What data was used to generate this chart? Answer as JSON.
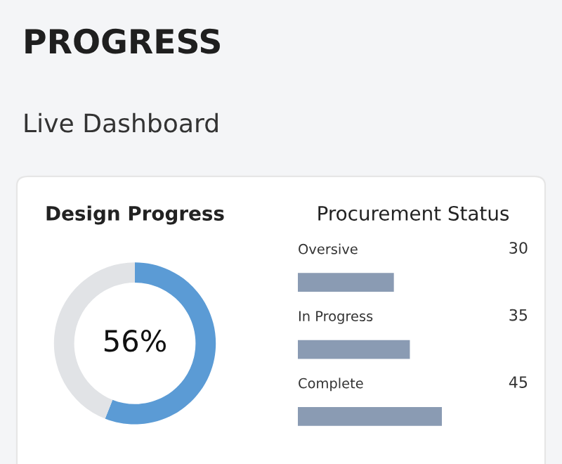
{
  "chart_data": [
    {
      "type": "other",
      "title": "PROGRESS",
      "subtitle": "Live Dashboard"
    },
    {
      "type": "donut",
      "title": "Design Progress",
      "categories": [
        null,
        null
      ],
      "values": [
        56,
        44
      ],
      "colors": [
        "#5b9bd5",
        "#e1e3e6"
      ],
      "annotations": [
        "56%"
      ]
    },
    {
      "type": "bar",
      "orientation": "horizontal",
      "title": "Procurement Status",
      "categories": [
        "Oversive",
        "In Progress",
        "Complete"
      ],
      "values": [
        30,
        35,
        45
      ],
      "color": "#8a9bb3",
      "data_labels": true
    }
  ]
}
